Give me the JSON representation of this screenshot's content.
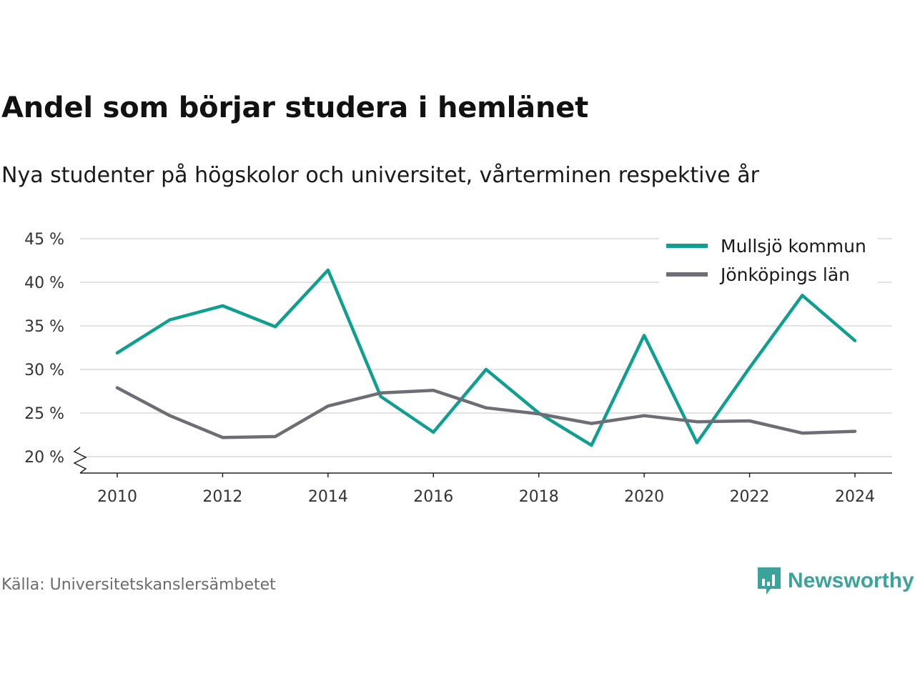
{
  "title": "Andel som börjar studera i hemlänet",
  "subtitle": "Nya studenter på högskolor och universitet, vårterminen respektive år",
  "source": "Källa: Universitetskanslersämbetet",
  "brand": {
    "name": "Newsworthy",
    "icon": "newsworthy-logo-icon",
    "color": "#3aa39a"
  },
  "chart_data": {
    "type": "line",
    "title": "Andel som börjar studera i hemlänet",
    "subtitle": "Nya studenter på högskolor och universitet, vårterminen respektive år",
    "x": [
      2010,
      2011,
      2012,
      2013,
      2014,
      2015,
      2016,
      2017,
      2018,
      2019,
      2020,
      2021,
      2022,
      2023,
      2024
    ],
    "x_ticks": [
      "2010",
      "2012",
      "2014",
      "2016",
      "2018",
      "2020",
      "2022",
      "2024"
    ],
    "y_ticks": [
      "20 %",
      "25 %",
      "30 %",
      "35 %",
      "40 %",
      "45 %"
    ],
    "y_tick_values": [
      20,
      25,
      30,
      35,
      40,
      45
    ],
    "ylim": [
      18,
      45
    ],
    "grid": "horizontal",
    "legend": "top-right",
    "axis_break": true,
    "series": [
      {
        "name": "Mullsjö kommun",
        "color": "#0e9f90",
        "values": [
          31.9,
          35.7,
          37.3,
          34.9,
          41.4,
          26.9,
          22.8,
          30.0,
          25.0,
          21.3,
          33.9,
          21.6,
          30.2,
          38.5,
          33.3
        ]
      },
      {
        "name": "Jönköpings län",
        "color": "#6e6d75",
        "values": [
          27.9,
          24.7,
          22.2,
          22.3,
          25.8,
          27.3,
          27.6,
          25.6,
          24.9,
          23.8,
          24.7,
          24.0,
          24.1,
          22.7,
          22.9
        ]
      }
    ]
  }
}
